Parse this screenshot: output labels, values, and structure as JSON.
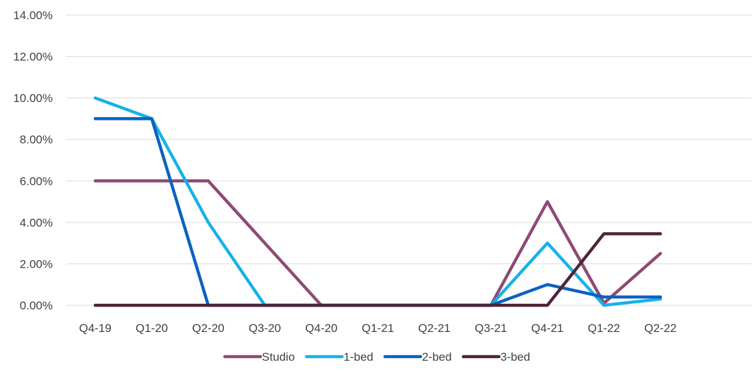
{
  "chart_data": {
    "type": "line",
    "title": "",
    "xlabel": "",
    "ylabel": "",
    "categories": [
      "Q4-19",
      "Q1-20",
      "Q2-20",
      "Q3-20",
      "Q4-20",
      "Q1-21",
      "Q2-21",
      "Q3-21",
      "Q4-21",
      "Q1-22",
      "Q2-22"
    ],
    "y_ticks": [
      "0.00%",
      "2.00%",
      "4.00%",
      "6.00%",
      "8.00%",
      "10.00%",
      "12.00%",
      "14.00%"
    ],
    "ylim": [
      0,
      14
    ],
    "grid": true,
    "legend_position": "bottom",
    "series": [
      {
        "name": "Studio",
        "color": "#8E4A74",
        "values": [
          6.0,
          6.0,
          6.0,
          3.0,
          0.0,
          0.0,
          0.0,
          0.0,
          5.0,
          0.1,
          2.5
        ]
      },
      {
        "name": "1-bed",
        "color": "#17B1E8",
        "values": [
          10.0,
          9.0,
          4.0,
          0.0,
          0.0,
          0.0,
          0.0,
          0.0,
          3.0,
          0.0,
          0.3
        ]
      },
      {
        "name": "2-bed",
        "color": "#0A62C0",
        "values": [
          9.0,
          9.0,
          0.0,
          0.0,
          0.0,
          0.0,
          0.0,
          0.0,
          1.0,
          0.4,
          0.4
        ]
      },
      {
        "name": "3-bed",
        "color": "#4D2437",
        "values": [
          0.0,
          0.0,
          0.0,
          0.0,
          0.0,
          0.0,
          0.0,
          0.0,
          0.0,
          3.45,
          3.45
        ]
      }
    ]
  }
}
